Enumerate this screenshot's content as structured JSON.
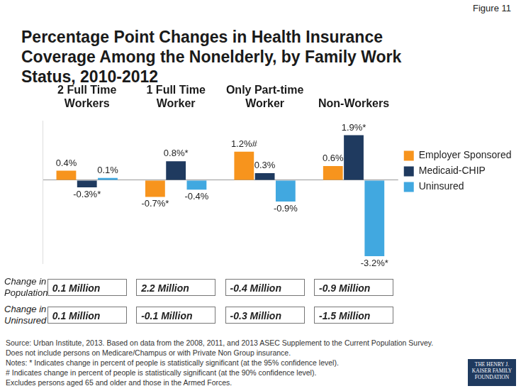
{
  "figure_label": "Figure 11",
  "chart_data": {
    "type": "bar",
    "title": "Percentage Point Changes in Health Insurance Coverage Among the Nonelderly, by Family Work Status, 2010-2012",
    "categories": [
      "2 Full Time Workers",
      "1 Full Time Worker",
      "Only Part-time Worker",
      "Non-Workers"
    ],
    "series": [
      {
        "name": "Employer Sponsored",
        "color": "#f7941d",
        "values": [
          0.4,
          -0.7,
          1.2,
          0.6
        ],
        "value_labels": [
          "0.4%",
          "-0.7%*",
          "1.2%#",
          "0.6%"
        ]
      },
      {
        "name": "Medicaid-CHIP",
        "color": "#1f3a5f",
        "values": [
          -0.3,
          0.8,
          0.3,
          1.9
        ],
        "value_labels": [
          "-0.3%*",
          "0.8%*",
          "0.3%",
          "1.9%*"
        ]
      },
      {
        "name": "Uninsured",
        "color": "#41a8e0",
        "values": [
          0.1,
          -0.4,
          -0.9,
          -3.2
        ],
        "value_labels": [
          "0.1%",
          "-0.4%",
          "-0.9%",
          "-3.2%*"
        ]
      }
    ],
    "ylim": [
      -3.5,
      2.5
    ],
    "yticks": [
      0
    ],
    "grid": true,
    "legend": "right",
    "data_labels": true,
    "tick_labels": "x"
  },
  "summary_table": {
    "rows": [
      {
        "label": "Change in Population",
        "values": [
          "0.1 Million",
          "2.2 Million",
          "-0.4 Million",
          "-0.9 Million"
        ]
      },
      {
        "label": "Change in Uninsured",
        "values": [
          "0.1 Million",
          "-0.1 Million",
          "-0.3 Million",
          "-1.5 Million"
        ]
      }
    ]
  },
  "notes": [
    "Source: Urban Institute, 2013. Based on data from the 2008, 2011, and 2013 ASEC Supplement to the Current Population Survey.",
    "Does not include persons on Medicare/Champus or with Private Non Group insurance.",
    "Notes: * Indicates change in percent of people is statistically significant (at the 95% confidence level).",
    "# Indicates change in percent of people is statistically significant (at the 90% confidence level).",
    "Excludes persons aged 65 and older and those in the Armed Forces."
  ],
  "logo": "THE HENRY J. KAISER FAMILY FOUNDATION"
}
